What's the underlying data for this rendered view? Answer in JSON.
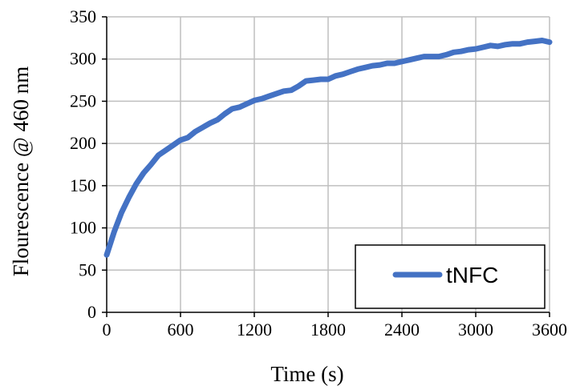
{
  "chart_data": {
    "type": "line",
    "xlabel": "Time (s)",
    "ylabel": "Flourescence @ 460 nm",
    "xlim": [
      0,
      3600
    ],
    "ylim": [
      0,
      350
    ],
    "xticks": [
      0,
      600,
      1200,
      1800,
      2400,
      3000,
      3600
    ],
    "yticks": [
      0,
      50,
      100,
      150,
      200,
      250,
      300,
      350
    ],
    "xtick_labels": [
      "0",
      "600",
      "1200",
      "1800",
      "2400",
      "3000",
      "3600"
    ],
    "ytick_labels": [
      "0",
      "50",
      "100",
      "150",
      "200",
      "250",
      "300",
      "350"
    ],
    "grid": true,
    "legend": {
      "position": "bottom-right"
    },
    "colors": {
      "series": "#4472c4",
      "grid": "#bfbfbf",
      "axis": "#000000"
    },
    "series": [
      {
        "name": "tNFC",
        "x": [
          0,
          60,
          120,
          180,
          240,
          300,
          360,
          420,
          480,
          540,
          600,
          660,
          720,
          780,
          840,
          900,
          960,
          1020,
          1080,
          1140,
          1200,
          1260,
          1320,
          1380,
          1440,
          1500,
          1560,
          1620,
          1680,
          1740,
          1800,
          1860,
          1920,
          1980,
          2040,
          2100,
          2160,
          2220,
          2280,
          2340,
          2400,
          2460,
          2520,
          2580,
          2640,
          2700,
          2760,
          2820,
          2880,
          2940,
          3000,
          3060,
          3120,
          3180,
          3240,
          3300,
          3360,
          3420,
          3480,
          3540,
          3600
        ],
        "values": [
          68,
          95,
          118,
          136,
          152,
          165,
          175,
          186,
          192,
          198,
          204,
          207,
          214,
          219,
          224,
          228,
          235,
          241,
          243,
          247,
          251,
          253,
          256,
          259,
          262,
          263,
          268,
          274,
          275,
          276,
          276,
          280,
          282,
          285,
          288,
          290,
          292,
          293,
          295,
          295,
          297,
          299,
          301,
          303,
          303,
          303,
          305,
          308,
          309,
          311,
          312,
          314,
          316,
          315,
          317,
          318,
          318,
          320,
          321,
          322,
          320
        ]
      }
    ]
  }
}
